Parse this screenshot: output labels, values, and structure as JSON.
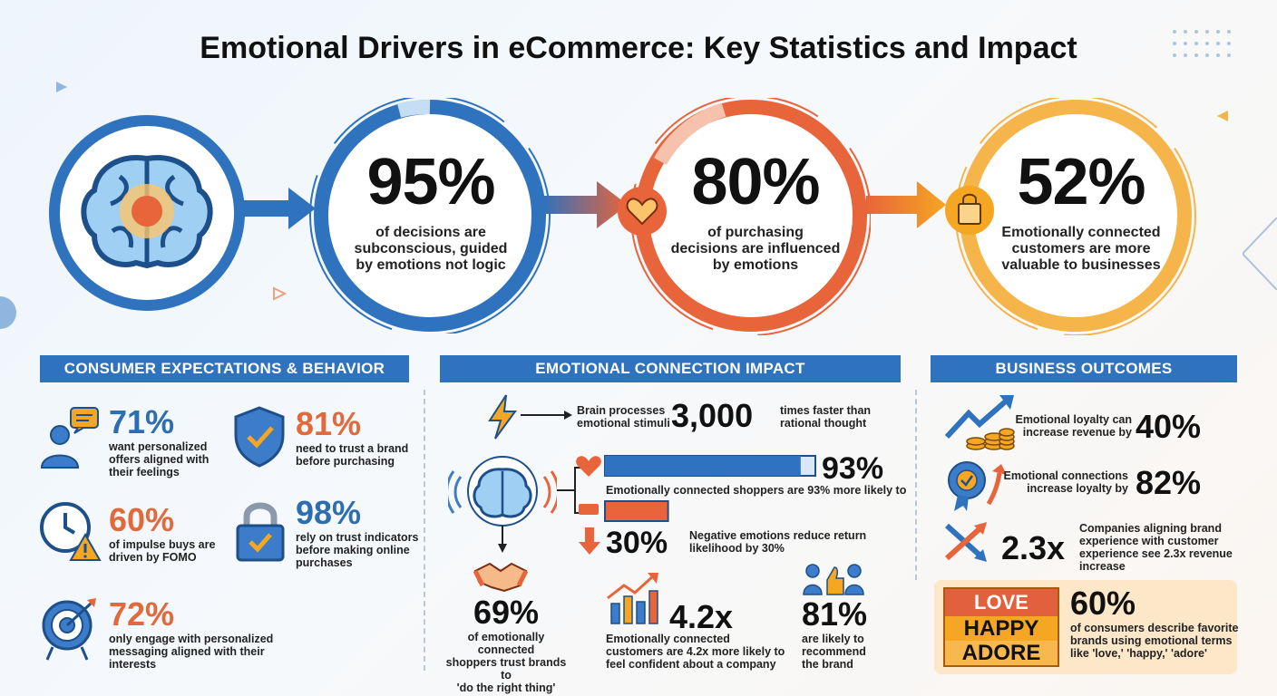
{
  "title": "Emotional Drivers in eCommerce: Key Statistics and Impact",
  "top_stats": [
    {
      "value": "95%",
      "text": [
        "of decisions are",
        "subconscious, guided",
        "by emotions not logic"
      ]
    },
    {
      "value": "80%",
      "text": [
        "of purchasing",
        "decisions are influenced",
        "by emotions"
      ]
    },
    {
      "value": "52%",
      "text": [
        "Emotionally connected",
        "customers are more",
        "valuable to businesses"
      ]
    }
  ],
  "sections": {
    "consumer": {
      "heading": "CONSUMER EXPECTATIONS & BEHAVIOR",
      "items": [
        {
          "value": "71%",
          "text": [
            "want personalized",
            "offers aligned with",
            "their feelings"
          ]
        },
        {
          "value": "81%",
          "text": [
            "need to trust a brand",
            "before purchasing"
          ]
        },
        {
          "value": "60%",
          "text": [
            "of impulse buys are",
            "driven by FOMO"
          ]
        },
        {
          "value": "98%",
          "text": [
            "rely on trust indicators",
            "before making online",
            "purchases"
          ]
        },
        {
          "value": "72%",
          "text": [
            "only engage with personalized",
            "messaging aligned with their",
            "interests"
          ]
        }
      ]
    },
    "emotional": {
      "heading": "EMOTIONAL CONNECTION IMPACT",
      "brain_label": [
        "Brain processes",
        "emotional stimuli"
      ],
      "brain_value": "3,000",
      "brain_after": [
        "times faster than",
        "rational thought"
      ],
      "bar1_value": "93%",
      "bar1_text": "Emotionally connected shoppers are 93% more likely to",
      "bar1_percent": 93,
      "bar2_value": "30%",
      "bar2_text": [
        "Negative emotions reduce return",
        "likelihood by 30%"
      ],
      "bar2_percent": 30,
      "bottom": [
        {
          "value": "69%",
          "text": [
            "of emotionally connected",
            "shoppers trust brands to",
            "'do the right thing'"
          ]
        },
        {
          "value": "4.2x",
          "text": [
            "Emotionally connected",
            "customers are 4.2x more likely to",
            "feel confident about a company"
          ]
        },
        {
          "value": "81%",
          "text": [
            "are likely to",
            "recommend",
            "the brand"
          ]
        }
      ]
    },
    "business": {
      "heading": "BUSINESS OUTCOMES",
      "items": [
        {
          "value": "40%",
          "text": [
            "Emotional loyalty can",
            "increase revenue by"
          ]
        },
        {
          "value": "82%",
          "text": [
            "Emotional connections",
            "increase loyalty by"
          ]
        },
        {
          "value": "2.3x",
          "text": [
            "Companies aligning brand",
            "experience with customer",
            "experience see 2.3x revenue increase"
          ]
        }
      ],
      "words": [
        "LOVE",
        "HAPPY",
        "ADORE"
      ],
      "words_value": "60%",
      "words_text": [
        "of consumers describe favorite",
        "brands using emotional terms",
        "like 'love,' 'happy,' 'adore'"
      ]
    }
  },
  "colors": {
    "blue": "#2f72bd",
    "orange": "#e06a3c",
    "yellow": "#f5a623"
  }
}
